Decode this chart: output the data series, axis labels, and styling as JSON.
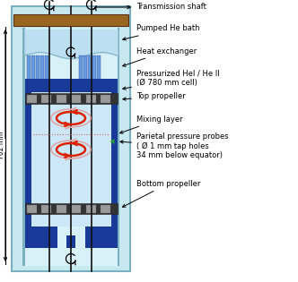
{
  "labels": {
    "transmission_shaft": "Transmission shaft",
    "pumped_he_bath": "Pumped He bath",
    "heat_exchanger": "Heat exchanger",
    "pressurized_hel": "Pressurized HeI / He II\n(Ø 780 mm cell)",
    "top_propeller": "Top propeller",
    "mixing_layer": "Mixing layer",
    "parietal_probes": "Parietal pressure probes\n( Ø 1 mm tap holes\n34 mm below equator)",
    "bottom_propeller": "Bottom propeller",
    "dimension": "702 mm"
  },
  "colors": {
    "outer_vessel": "#c8e8f0",
    "outer_vessel_stroke": "#7ab0c0",
    "inner_vessel_fill": "#d8f0f8",
    "blue_dark": "#1a3a9a",
    "blue_medium": "#4477cc",
    "heat_exchanger_fill": "#6699dd",
    "propeller_gray": "#999999",
    "wood_brown": "#996622",
    "red_arrow": "#dd2200",
    "pink_arrow": "#ddaaaa",
    "green_triangle": "#229933",
    "background": "#ffffff",
    "shaft_color": "#111111",
    "pumped_bath": "#b8ddf0"
  }
}
